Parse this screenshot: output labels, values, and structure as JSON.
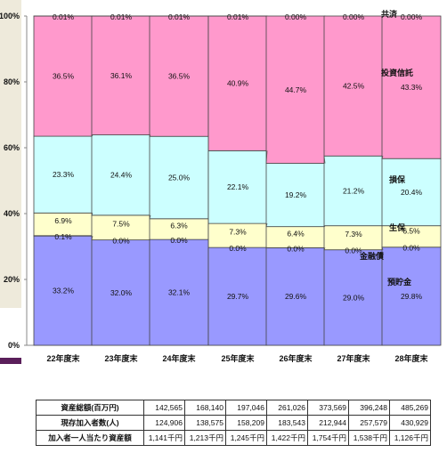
{
  "chart_data": {
    "type": "bar",
    "stacked": true,
    "categories": [
      "22年度末",
      "23年度末",
      "24年度末",
      "25年度末",
      "26年度末",
      "27年度末",
      "28年度末"
    ],
    "y_ticks": [
      "0%",
      "20%",
      "40%",
      "60%",
      "80%",
      "100%"
    ],
    "ylim": [
      0,
      100
    ],
    "series": [
      {
        "name": "預貯金",
        "color": "#9999ff",
        "values": [
          33.2,
          32.0,
          32.1,
          29.7,
          29.6,
          29.0,
          29.8
        ],
        "labels": [
          "33.2%",
          "32.0%",
          "32.1%",
          "29.7%",
          "29.6%",
          "29.0%",
          "29.8%"
        ]
      },
      {
        "name": "金融債",
        "color": "#9999ff",
        "values": [
          0.1,
          0.0,
          0.0,
          0.0,
          0.0,
          0.0,
          0.0
        ],
        "labels": [
          "0.1%",
          "0.0%",
          "0.0%",
          "0.0%",
          "0.0%",
          "0.0%",
          "0.0%"
        ]
      },
      {
        "name": "生保",
        "color": "#ffffcc",
        "values": [
          6.9,
          7.5,
          6.3,
          7.3,
          6.4,
          7.3,
          6.5
        ],
        "labels": [
          "6.9%",
          "7.5%",
          "6.3%",
          "7.3%",
          "6.4%",
          "7.3%",
          "6.5%"
        ]
      },
      {
        "name": "損保",
        "color": "#ccffff",
        "values": [
          23.3,
          24.4,
          25.0,
          22.1,
          19.2,
          21.2,
          20.4
        ],
        "labels": [
          "23.3%",
          "24.4%",
          "25.0%",
          "22.1%",
          "19.2%",
          "21.2%",
          "20.4%"
        ]
      },
      {
        "name": "投資信託",
        "color": "#ff99cc",
        "values": [
          36.5,
          36.1,
          36.5,
          40.9,
          44.7,
          42.5,
          43.3
        ],
        "labels": [
          "36.5%",
          "36.1%",
          "36.5%",
          "40.9%",
          "44.7%",
          "42.5%",
          "43.3%"
        ]
      },
      {
        "name": "共済",
        "color": "#ff99cc",
        "values": [
          0.01,
          0.01,
          0.01,
          0.01,
          0.0,
          0.0,
          0.0
        ],
        "labels": [
          "0.01%",
          "0.01%",
          "0.01%",
          "0.01%",
          "0.00%",
          "0.00%",
          "0.00%"
        ]
      }
    ],
    "grid": false,
    "legend": "inline-labels-right"
  },
  "table": {
    "rows": [
      {
        "label": "資産総額(百万円)",
        "values": [
          "142,565",
          "168,140",
          "197,046",
          "261,026",
          "373,569",
          "396,248",
          "485,269"
        ]
      },
      {
        "label": "現存加入者数(人)",
        "values": [
          "124,906",
          "138,575",
          "158,209",
          "183,543",
          "212,944",
          "257,579",
          "430,929"
        ]
      },
      {
        "label": "加入者一人当たり資産額",
        "values": [
          "1,141千円",
          "1,213千円",
          "1,245千円",
          "1,422千円",
          "1,754千円",
          "1,538千円",
          "1,126千円"
        ]
      }
    ]
  }
}
